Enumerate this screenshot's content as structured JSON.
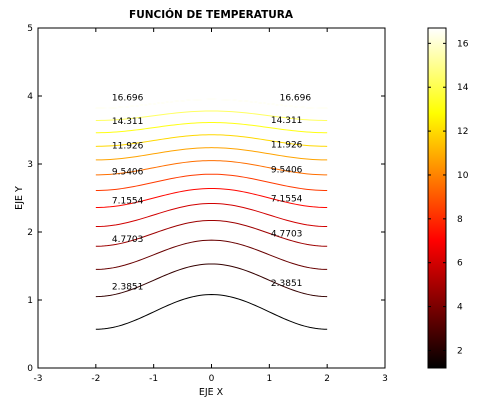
{
  "chart_data": {
    "type": "contour",
    "title": "FUNCIÓN DE TEMPERATURA",
    "xlabel": "EJE X",
    "ylabel": "EJE Y",
    "xlim": [
      -3,
      3
    ],
    "ylim": [
      0,
      5
    ],
    "xticks": [
      "-3",
      "-2",
      "-1",
      "0",
      "1",
      "2",
      "3"
    ],
    "yticks": [
      "0",
      "1",
      "2",
      "3",
      "4",
      "5"
    ],
    "x_domain": [
      -2,
      2
    ],
    "colormap": "hot",
    "colorbar": {
      "ticks": [
        "2",
        "4",
        "6",
        "8",
        "10",
        "12",
        "14",
        "16"
      ],
      "range": [
        1.2,
        16.7
      ]
    },
    "levels": [
      {
        "value": 1.1926,
        "edge_y": 0.57,
        "center_y": 1.08
      },
      {
        "value": 2.3851,
        "edge_y": 1.05,
        "center_y": 1.53,
        "label": "2.3851"
      },
      {
        "value": 3.5777,
        "edge_y": 1.45,
        "center_y": 1.88
      },
      {
        "value": 4.7703,
        "edge_y": 1.79,
        "center_y": 2.17,
        "label": "4.7703"
      },
      {
        "value": 5.9628,
        "edge_y": 2.08,
        "center_y": 2.42
      },
      {
        "value": 7.1554,
        "edge_y": 2.36,
        "center_y": 2.64,
        "label": "7.1554"
      },
      {
        "value": 8.348,
        "edge_y": 2.61,
        "center_y": 2.85
      },
      {
        "value": 9.5406,
        "edge_y": 2.84,
        "center_y": 3.05,
        "label": "9.5406"
      },
      {
        "value": 10.733,
        "edge_y": 3.06,
        "center_y": 3.24
      },
      {
        "value": 11.926,
        "edge_y": 3.26,
        "center_y": 3.43,
        "label": "11.926"
      },
      {
        "value": 13.118,
        "edge_y": 3.46,
        "center_y": 3.61
      },
      {
        "value": 14.311,
        "edge_y": 3.64,
        "center_y": 3.78,
        "label": "14.311"
      },
      {
        "value": 15.503,
        "edge_y": 3.82,
        "center_y": 3.95
      },
      {
        "value": 16.696,
        "edge_y": 3.82,
        "center_y": 3.95,
        "label": "16.696"
      }
    ],
    "contour_labels": [
      {
        "text": "16.696",
        "x": -1.45,
        "y": 3.98
      },
      {
        "text": "16.696",
        "x": 1.45,
        "y": 3.98
      },
      {
        "text": "14.311",
        "x": -1.45,
        "y": 3.63
      },
      {
        "text": "14.311",
        "x": 1.3,
        "y": 3.65
      },
      {
        "text": "11.926",
        "x": -1.45,
        "y": 3.27
      },
      {
        "text": "11.926",
        "x": 1.3,
        "y": 3.29
      },
      {
        "text": "9.5406",
        "x": -1.45,
        "y": 2.89
      },
      {
        "text": "9.5406",
        "x": 1.3,
        "y": 2.92
      },
      {
        "text": "7.1554",
        "x": -1.45,
        "y": 2.46
      },
      {
        "text": "7.1554",
        "x": 1.3,
        "y": 2.49
      },
      {
        "text": "4.7703",
        "x": -1.45,
        "y": 1.9
      },
      {
        "text": "4.7703",
        "x": 1.3,
        "y": 1.98
      },
      {
        "text": "2.3851",
        "x": -1.45,
        "y": 1.2
      },
      {
        "text": "2.3851",
        "x": 1.3,
        "y": 1.25
      }
    ]
  }
}
